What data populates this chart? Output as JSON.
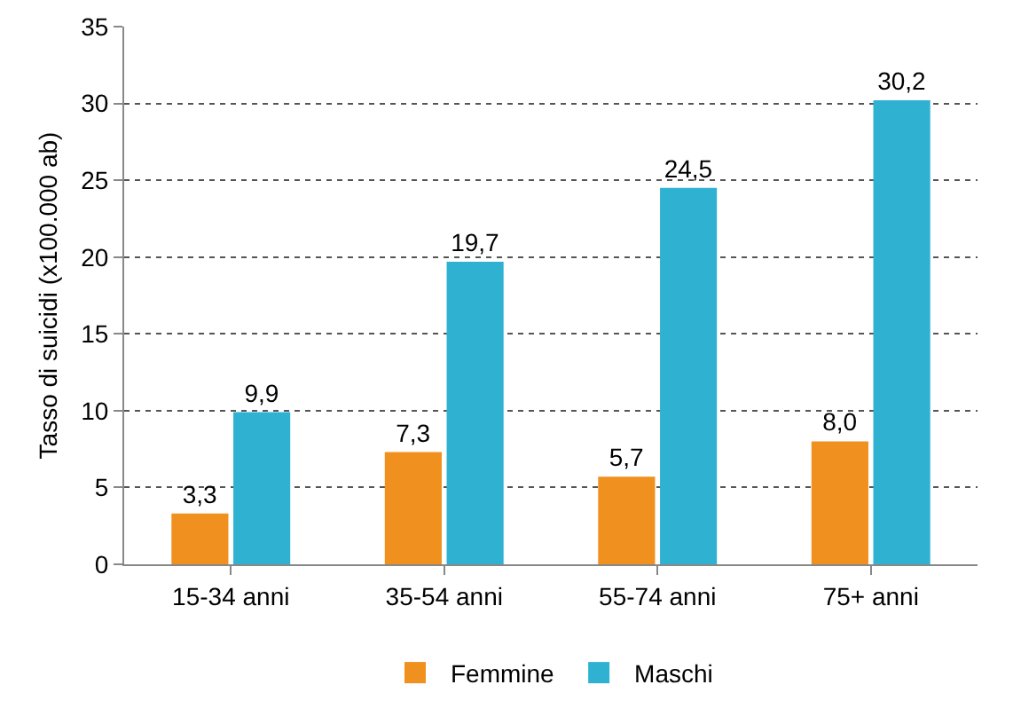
{
  "chart_data": {
    "type": "bar",
    "ylabel": "Tasso di suicidi (x100.000 ab)",
    "categories": [
      "15-34 anni",
      "35-54 anni",
      "55-74 anni",
      "75+ anni"
    ],
    "series": [
      {
        "name": "Femmine",
        "color": "#f0901e",
        "values": [
          3.3,
          7.3,
          5.7,
          8.0
        ],
        "value_labels": [
          "3,3",
          "7,3",
          "5,7",
          "8,0"
        ]
      },
      {
        "name": "Maschi",
        "color": "#2fb2d2",
        "values": [
          9.9,
          19.7,
          24.5,
          30.2
        ],
        "value_labels": [
          "9,9",
          "19,7",
          "24,5",
          "30,2"
        ]
      }
    ],
    "ylim": [
      0,
      35
    ],
    "yticks": [
      0,
      5,
      10,
      15,
      20,
      25,
      30,
      35
    ],
    "grid": "y",
    "legend": "bottom"
  }
}
